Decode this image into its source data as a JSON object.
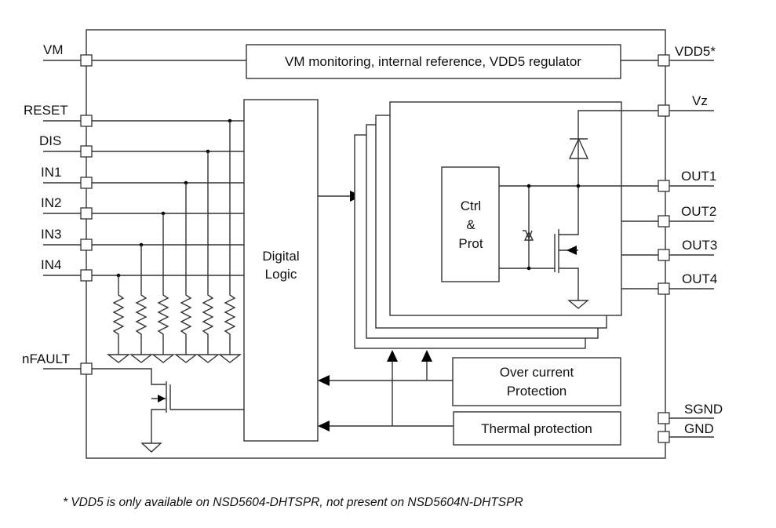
{
  "pins_left": {
    "vm": "VM",
    "reset": "RESET",
    "dis": "DIS",
    "in1": "IN1",
    "in2": "IN2",
    "in3": "IN3",
    "in4": "IN4",
    "nfault": "nFAULT"
  },
  "pins_right": {
    "vdd5": "VDD5*",
    "vz": "Vz",
    "out1": "OUT1",
    "out2": "OUT2",
    "out3": "OUT3",
    "out4": "OUT4",
    "sgnd": "SGND",
    "gnd": "GND"
  },
  "blocks": {
    "vm_monitor": "VM monitoring, internal reference, VDD5 regulator",
    "digital_logic": [
      "Digital",
      "Logic"
    ],
    "ctrl_prot": [
      "Ctrl",
      "&",
      "Prot"
    ],
    "over_current": [
      "Over current",
      "Protection"
    ],
    "thermal": "Thermal protection"
  },
  "footnote": "* VDD5 is only available on NSD5604-DHTSPR, not present on NSD5604N-DHTSPR"
}
